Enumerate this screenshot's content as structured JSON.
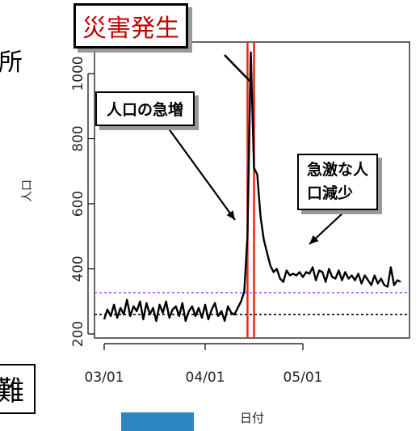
{
  "fragments": {
    "top_left": "所",
    "bottom_left": "難"
  },
  "callouts": {
    "disaster": "災害発生",
    "surge": "人口の急増",
    "drop_line1": "急激な人",
    "drop_line2": "口減少"
  },
  "colors": {
    "series": "#000000",
    "event": "#e8281e",
    "purple_ref": "#a64dff",
    "black_ref": "#000000",
    "callout_red_text": "#c00000",
    "blue_block": "#2e86c1"
  },
  "chart_data": {
    "type": "line",
    "xlabel": "日付",
    "ylabel": "人口",
    "x_ticks": [
      "03/01",
      "04/01",
      "05/01"
    ],
    "y_ticks": [
      200,
      400,
      600,
      800,
      1000
    ],
    "ylim": [
      195,
      1085
    ],
    "xlim_days_from_0301": [
      0,
      92
    ],
    "event_dates": [
      "04/14",
      "04/16"
    ],
    "ref_lines": [
      {
        "value": 327,
        "style": "dotted",
        "color": "purple"
      },
      {
        "value": 260,
        "style": "dotted",
        "color": "black"
      }
    ],
    "series": [
      {
        "values": [
          245,
          275,
          255,
          290,
          250,
          280,
          260,
          305,
          255,
          285,
          270,
          300,
          245,
          295,
          260,
          280,
          240,
          290,
          265,
          300,
          250,
          275,
          285,
          255,
          295,
          240,
          270,
          285,
          255,
          280,
          250,
          290,
          245,
          275,
          295,
          255,
          270,
          240,
          285,
          265,
          260,
          280,
          300,
          330,
          500,
          1065,
          710,
          690,
          560,
          490,
          450,
          410,
          390,
          400,
          370,
          360,
          395,
          380,
          385,
          380,
          390,
          375,
          390,
          385,
          405,
          365,
          395,
          390,
          360,
          400,
          375,
          370,
          395,
          365,
          390,
          370,
          380,
          365,
          385,
          355,
          380,
          365,
          350,
          380,
          355,
          370,
          350,
          345,
          405,
          350,
          365,
          360
        ]
      }
    ]
  }
}
